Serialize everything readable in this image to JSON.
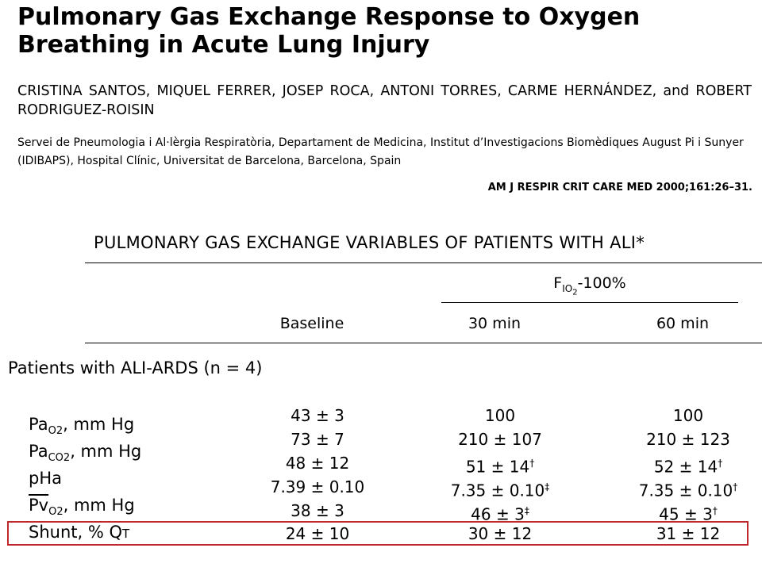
{
  "paper": {
    "title": "Pulmonary Gas Exchange Response to Oxygen Breathing in Acute Lung Injury",
    "authors": "CRISTINA SANTOS, MIQUEL FERRER, JOSEP ROCA, ANTONI TORRES, CARME HERNÁNDEZ, and ROBERT RODRIGUEZ-ROISIN",
    "affiliation": "Servei de Pneumologia i Al·lèrgia Respiratòria, Departament de Medicina, Institut d’Investigacions Biomèdiques August Pi i Sunyer (IDIBAPS), Hospital Clínic, Universitat de Barcelona, Barcelona, Spain",
    "citation": "AM J RESPIR CRIT CARE MED 2000;161:26–31."
  },
  "table": {
    "title": "PULMONARY  GAS EXCHANGE VARIABLES OF PATIENTS WITH ALI*",
    "group_header": {
      "prefix": "F",
      "sub1": "I",
      "sub2": "O",
      "sub3": "2",
      "suffix": "-100%"
    },
    "columns": [
      "Baseline",
      "30 min",
      "60 min"
    ],
    "section_label": "Patients with ALI-ARDS (n = 4)",
    "rows": [
      {
        "label_main": "Pa",
        "label_sub": "O2",
        "label_rest": ", mm Hg",
        "values": [
          "43 ± 3",
          "100",
          "100"
        ],
        "marks": [
          "",
          "",
          ""
        ]
      },
      {
        "label_main": "Pa",
        "label_sub": "CO2",
        "label_rest": ", mm Hg",
        "values": [
          "73 ± 7",
          "210 ± 107",
          "210 ± 123"
        ],
        "marks": [
          "",
          "",
          ""
        ]
      },
      {
        "label_main": "pHa",
        "label_sub": "",
        "label_rest": "",
        "values": [
          "48 ± 12",
          "51 ± 14",
          "52 ± 14"
        ],
        "marks": [
          "",
          "†",
          "†"
        ]
      },
      {
        "label_main": "Pv",
        "label_sub": "O2",
        "label_rest": ", mm Hg",
        "values": [
          "7.39 ± 0.10",
          "7.35 ± 0.10",
          "7.35 ± 0.10"
        ],
        "marks": [
          "",
          "‡",
          "†"
        ]
      },
      {
        "label_main": "",
        "label_sub": "",
        "label_rest": "",
        "values": [
          "38 ± 3",
          "46 ± 3",
          "45 ± 3"
        ],
        "marks": [
          "",
          "‡",
          "†"
        ]
      },
      {
        "label_main": "Shunt, % Q",
        "label_sub": "",
        "label_rest": "T",
        "values": [
          "24 ± 10",
          "30 ± 12",
          "31 ± 12"
        ],
        "marks": [
          "",
          "",
          ""
        ]
      }
    ]
  },
  "colors": {
    "highlight_border": "#c0282d"
  }
}
